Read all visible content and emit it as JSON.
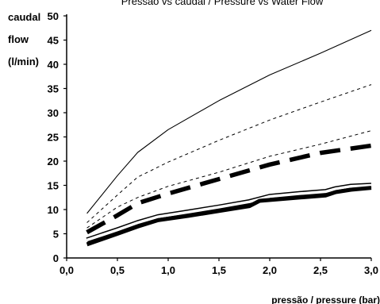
{
  "chart_data": {
    "type": "line",
    "title": "Pressão vs caudal / Pressure vs Water Flow",
    "ylabel_lines": [
      "caudal",
      "flow",
      "(l/min)"
    ],
    "xlabel": "pressão / pressure (bar)",
    "xlim": [
      0,
      3
    ],
    "ylim": [
      0,
      50
    ],
    "x_ticks": [
      "0,0",
      "0,5",
      "1,0",
      "1,5",
      "2,0",
      "2,5",
      "3,0"
    ],
    "y_ticks": [
      "0",
      "5",
      "10",
      "15",
      "20",
      "25",
      "30",
      "35",
      "40",
      "45",
      "50"
    ],
    "grid": false,
    "series": [
      {
        "style": "thin-solid",
        "color": "#000000",
        "points": [
          [
            0.2,
            9.2
          ],
          [
            0.5,
            17
          ],
          [
            0.7,
            21.8
          ],
          [
            1.0,
            26.5
          ],
          [
            1.5,
            32.5
          ],
          [
            2.0,
            37.8
          ],
          [
            2.5,
            42.3
          ],
          [
            3.0,
            47
          ]
        ]
      },
      {
        "style": "thin-dashed",
        "color": "#000000",
        "points": [
          [
            0.2,
            7.3
          ],
          [
            0.5,
            13
          ],
          [
            0.7,
            16.7
          ],
          [
            1.0,
            19.8
          ],
          [
            1.5,
            24.3
          ],
          [
            2.0,
            28.5
          ],
          [
            2.5,
            32.2
          ],
          [
            3.0,
            35.8
          ]
        ]
      },
      {
        "style": "thin-dashed",
        "color": "#000000",
        "points": [
          [
            0.2,
            6.2
          ],
          [
            0.5,
            10.5
          ],
          [
            0.7,
            12.5
          ],
          [
            1.0,
            14.8
          ],
          [
            1.5,
            17.7
          ],
          [
            2.0,
            21
          ],
          [
            2.5,
            23.5
          ],
          [
            3.0,
            26.3
          ]
        ]
      },
      {
        "style": "thick-dashed",
        "color": "#000000",
        "points": [
          [
            0.2,
            5.3
          ],
          [
            0.5,
            8.8
          ],
          [
            0.7,
            11.3
          ],
          [
            1.0,
            13.3
          ],
          [
            1.5,
            16.3
          ],
          [
            2.0,
            19.3
          ],
          [
            2.5,
            21.7
          ],
          [
            3.0,
            23.2
          ]
        ]
      },
      {
        "style": "double-line",
        "color": "#000000",
        "points": [
          [
            0.2,
            3.7
          ],
          [
            0.5,
            5.8
          ],
          [
            0.7,
            7.3
          ],
          [
            0.9,
            8.5
          ],
          [
            1.2,
            9.5
          ],
          [
            1.5,
            10.5
          ],
          [
            1.8,
            11.6
          ],
          [
            2.0,
            12.7
          ],
          [
            2.3,
            13.3
          ],
          [
            2.55,
            13.7
          ],
          [
            2.65,
            14.3
          ],
          [
            2.8,
            14.8
          ],
          [
            3.0,
            15
          ]
        ]
      },
      {
        "style": "thick-solid",
        "color": "#000000",
        "points": [
          [
            0.2,
            2.8
          ],
          [
            0.5,
            5.0
          ],
          [
            0.7,
            6.5
          ],
          [
            0.9,
            7.8
          ],
          [
            1.2,
            8.7
          ],
          [
            1.5,
            9.7
          ],
          [
            1.8,
            10.7
          ],
          [
            1.9,
            11.8
          ],
          [
            2.3,
            12.5
          ],
          [
            2.55,
            12.9
          ],
          [
            2.65,
            13.6
          ],
          [
            2.8,
            14.1
          ],
          [
            3.0,
            14.5
          ]
        ]
      }
    ]
  }
}
